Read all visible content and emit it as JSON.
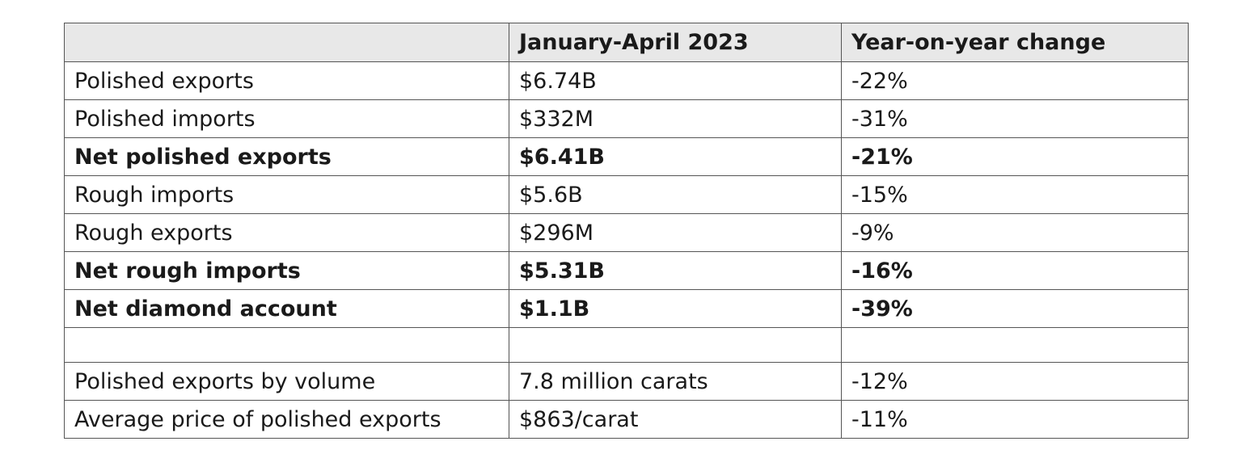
{
  "table": {
    "headers": [
      "",
      "January-April 2023",
      "Year-on-year change"
    ],
    "rows": [
      {
        "label": "Polished exports",
        "value": "$6.74B",
        "change": "-22%"
      },
      {
        "label": "Polished imports",
        "value": "$332M",
        "change": "-31%"
      },
      {
        "label": "Net polished exports",
        "value": "$6.41B",
        "change": "-21%"
      },
      {
        "label": "Rough imports",
        "value": "$5.6B",
        "change": "-15%"
      },
      {
        "label": "Rough exports",
        "value": "$296M",
        "change": "-9%"
      },
      {
        "label": "Net rough imports",
        "value": "$5.31B",
        "change": "-16%"
      },
      {
        "label": "Net diamond account",
        "value": "$1.1B",
        "change": "-39%"
      },
      {
        "label": "",
        "value": "",
        "change": ""
      },
      {
        "label": "Polished exports by volume",
        "value": "7.8 million carats",
        "change": "-12%"
      },
      {
        "label": "Average price of polished exports",
        "value": "$863/carat",
        "change": "-11%"
      }
    ]
  },
  "colors": {
    "header_background": "#e8e8e8",
    "border": "#555555",
    "text": "#1a1a1a"
  }
}
